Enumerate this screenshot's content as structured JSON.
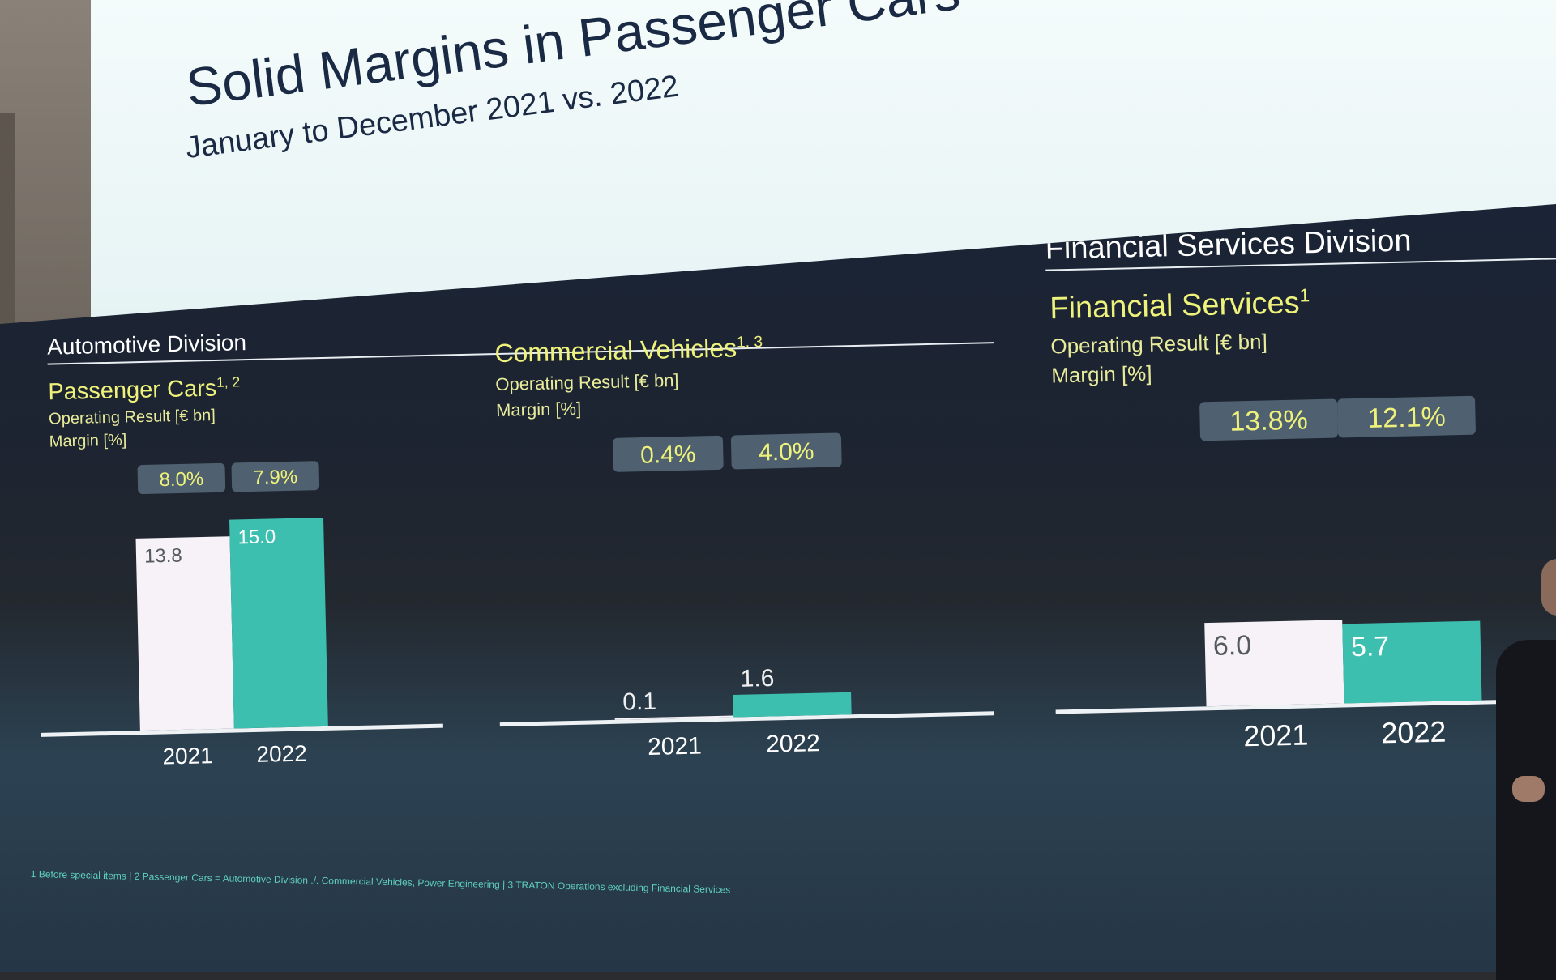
{
  "slide": {
    "title": "Solid Margins in Passenger Cars",
    "subtitle": "January to December 2021 vs. 2022"
  },
  "sections": {
    "automotive": "Automotive Division",
    "financial": "Financial Services Division"
  },
  "segments": [
    {
      "title": "Passenger Cars",
      "superscript": "1, 2",
      "line1": "Operating Result [€ bn]",
      "line2": "Margin [%]"
    },
    {
      "title": "Commercial Vehicles",
      "superscript": "1, 3",
      "line1": "Operating Result [€ bn]",
      "line2": "Margin [%]"
    },
    {
      "title": "Financial Services",
      "superscript": "1",
      "line1": "Operating Result [€ bn]",
      "line2": "Margin [%]"
    }
  ],
  "chart_data": [
    {
      "type": "bar",
      "title": "Passenger Cars",
      "ylabel": "Operating Result [€ bn]",
      "categories": [
        "2021",
        "2022"
      ],
      "values": [
        13.8,
        15.0
      ],
      "value_labels": [
        "13.8",
        "15.0"
      ],
      "margins": [
        "8.0%",
        "7.9%"
      ],
      "ylim": [
        0,
        15.0
      ],
      "colors": [
        "#f7f2f8",
        "#3dbfb0"
      ]
    },
    {
      "type": "bar",
      "title": "Commercial Vehicles",
      "ylabel": "Operating Result [€ bn]",
      "categories": [
        "2021",
        "2022"
      ],
      "values": [
        0.1,
        1.6
      ],
      "value_labels": [
        "0.1",
        "1.6"
      ],
      "margins": [
        "0.4%",
        "4.0%"
      ],
      "ylim": [
        0,
        15.0
      ],
      "colors": [
        "#f7f2f8",
        "#3dbfb0"
      ]
    },
    {
      "type": "bar",
      "title": "Financial Services",
      "ylabel": "Operating Result [€ bn]",
      "categories": [
        "2021",
        "2022"
      ],
      "values": [
        6.0,
        5.7
      ],
      "value_labels": [
        "6.0",
        "5.7"
      ],
      "margins": [
        "13.8%",
        "12.1%"
      ],
      "ylim": [
        0,
        15.0
      ],
      "colors": [
        "#f7f2f8",
        "#3dbfb0"
      ]
    }
  ],
  "footnote": "1 Before special items   |   2 Passenger Cars = Automotive Division ./. Commercial Vehicles, Power Engineering   |   3 TRATON Operations excluding Financial Services"
}
